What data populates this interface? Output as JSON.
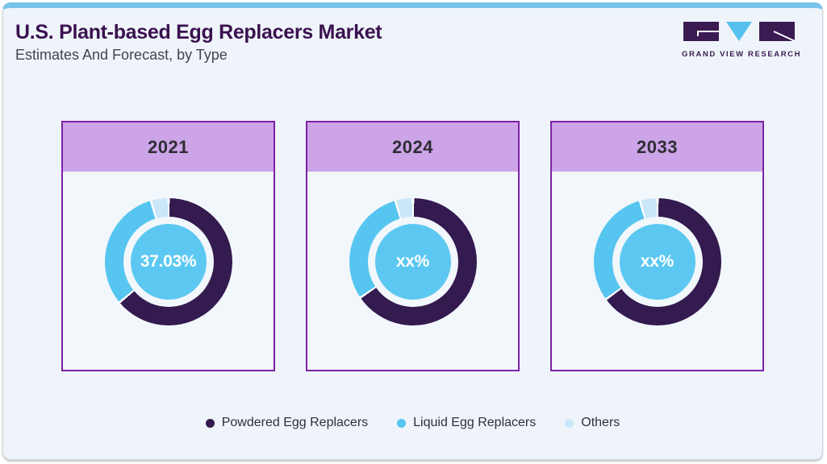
{
  "header": {
    "title": "U.S. Plant-based Egg Replacers Market",
    "subtitle": "Estimates And Forecast, by Type",
    "logo_text": "GRAND VIEW RESEARCH"
  },
  "theme": {
    "top_bar": "#76c4ea",
    "panel_bg": "#eef4f9",
    "card_bg": "#f2f7fb",
    "card_border": "#7c21a5",
    "card_header_bg": "#cda4e7",
    "title_color": "#3a1150",
    "subtitle_color": "#44444e",
    "center_circle": "#5cc8f2",
    "center_text": "#ffffff",
    "logo_purple": "#3b1b52",
    "logo_blue": "#56c1ee"
  },
  "chart_data": {
    "type": "pie",
    "subtype": "donut",
    "title": "U.S. Plant-based Egg Replacers Market",
    "subtitle": "Estimates And Forecast, by Type",
    "legend_position": "bottom",
    "start_angle_deg": 0,
    "direction": "clockwise",
    "categories": [
      "Powdered Egg Replacers",
      "Liquid Egg Replacers",
      "Others"
    ],
    "colors": [
      "#331a4f",
      "#56c5f0",
      "#c9e7f8"
    ],
    "years": [
      {
        "label": "2021",
        "center_label": "37.03%",
        "values": [
          64,
          31.5,
          4.5
        ]
      },
      {
        "label": "2024",
        "center_label": "xx%",
        "values": [
          65.5,
          30,
          4.5
        ]
      },
      {
        "label": "2033",
        "center_label": "xx%",
        "values": [
          65,
          30.5,
          4.5
        ]
      }
    ]
  }
}
